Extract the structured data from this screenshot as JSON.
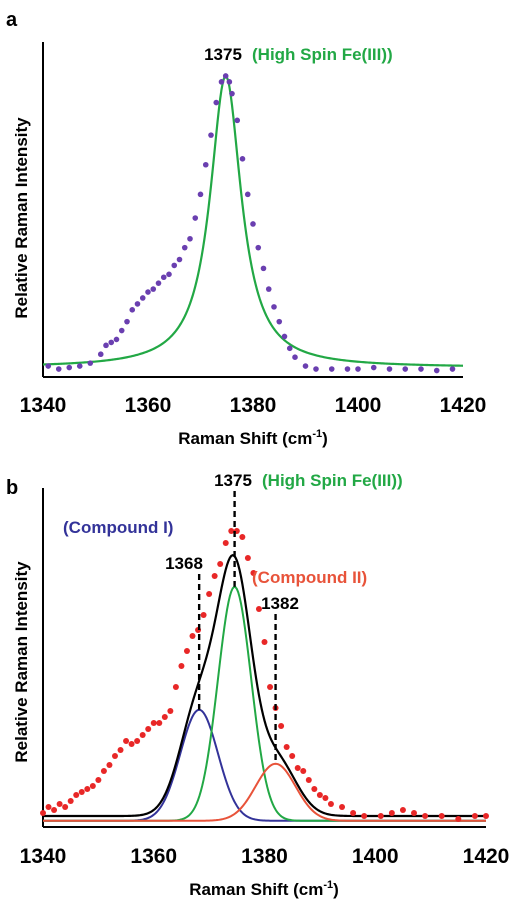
{
  "chart_data": [
    {
      "panel": "a",
      "type": "line",
      "xlabel": "Raman Shift (cm⁻¹)",
      "ylabel": "Relative Raman Intensity",
      "xlim": [
        1340,
        1420
      ],
      "ylim": [
        0,
        1.02
      ],
      "xticks": [
        "1340",
        "1360",
        "1380",
        "1400",
        "1420"
      ],
      "grid": false,
      "colors": {
        "fit": "#22a845",
        "data": "#6a3fb0"
      },
      "annotations": [
        {
          "label": "1375",
          "x": 1375,
          "color": "#000000"
        },
        {
          "label": "(High Spin Fe(III))",
          "color": "#22a845"
        }
      ],
      "fit": {
        "center": 1374.8,
        "hwhm": 3.6,
        "amplitude": 1.0,
        "baseline": 0.015
      },
      "data_points": [
        [
          1341,
          0.02
        ],
        [
          1343,
          0.01
        ],
        [
          1345,
          0.015
        ],
        [
          1347,
          0.02
        ],
        [
          1349,
          0.03
        ],
        [
          1351,
          0.06
        ],
        [
          1352,
          0.09
        ],
        [
          1353,
          0.1
        ],
        [
          1354,
          0.11
        ],
        [
          1355,
          0.14
        ],
        [
          1356,
          0.17
        ],
        [
          1357,
          0.21
        ],
        [
          1358,
          0.23
        ],
        [
          1359,
          0.25
        ],
        [
          1360,
          0.27
        ],
        [
          1361,
          0.28
        ],
        [
          1362,
          0.3
        ],
        [
          1363,
          0.32
        ],
        [
          1364,
          0.33
        ],
        [
          1365,
          0.36
        ],
        [
          1366,
          0.38
        ],
        [
          1367,
          0.42
        ],
        [
          1368,
          0.45
        ],
        [
          1369,
          0.52
        ],
        [
          1370,
          0.6
        ],
        [
          1371,
          0.7
        ],
        [
          1372,
          0.8
        ],
        [
          1373,
          0.91
        ],
        [
          1374,
          0.98
        ],
        [
          1374.8,
          1.0
        ],
        [
          1375.5,
          0.98
        ],
        [
          1376,
          0.94
        ],
        [
          1377,
          0.85
        ],
        [
          1378,
          0.72
        ],
        [
          1379,
          0.6
        ],
        [
          1380,
          0.5
        ],
        [
          1381,
          0.42
        ],
        [
          1382,
          0.35
        ],
        [
          1383,
          0.28
        ],
        [
          1384,
          0.22
        ],
        [
          1385,
          0.17
        ],
        [
          1386,
          0.12
        ],
        [
          1387,
          0.08
        ],
        [
          1388,
          0.05
        ],
        [
          1390,
          0.02
        ],
        [
          1392,
          0.01
        ],
        [
          1395,
          0.01
        ],
        [
          1398,
          0.01
        ],
        [
          1400,
          0.01
        ],
        [
          1403,
          0.015
        ],
        [
          1406,
          0.01
        ],
        [
          1409,
          0.01
        ],
        [
          1412,
          0.01
        ],
        [
          1415,
          0.005
        ],
        [
          1418,
          0.01
        ]
      ]
    },
    {
      "panel": "b",
      "type": "line",
      "xlabel": "Raman Shift (cm⁻¹)",
      "ylabel": "Relative Raman Intensity",
      "xlim": [
        1340,
        1420
      ],
      "ylim": [
        0,
        1.02
      ],
      "xticks": [
        "1340",
        "1360",
        "1380",
        "1400",
        "1420"
      ],
      "grid": false,
      "colors": {
        "sum": "#000000",
        "high_spin": "#22a845",
        "compound_i": "#333399",
        "compound_ii": "#e8533a",
        "data": "#e82727"
      },
      "annotations": [
        {
          "label": "1375",
          "x": 1375,
          "color": "#000000"
        },
        {
          "label": "(High Spin Fe(III))",
          "color": "#22a845"
        },
        {
          "label": "(Compound I)",
          "color": "#333399"
        },
        {
          "label": "1368",
          "x": 1368,
          "color": "#000000"
        },
        {
          "label": "(Compound II)",
          "color": "#e8533a"
        },
        {
          "label": "1382",
          "x": 1382,
          "color": "#000000"
        }
      ],
      "components": [
        {
          "center": 1368.2,
          "sigma": 3.4,
          "amplitude": 0.37
        },
        {
          "center": 1374.6,
          "sigma": 3.0,
          "amplitude": 0.78
        },
        {
          "center": 1382.0,
          "sigma": 3.6,
          "amplitude": 0.19
        }
      ],
      "baseline": 0.02,
      "data_points": [
        [
          1340,
          0.03
        ],
        [
          1341,
          0.05
        ],
        [
          1342,
          0.04
        ],
        [
          1343,
          0.06
        ],
        [
          1344,
          0.05
        ],
        [
          1345,
          0.07
        ],
        [
          1346,
          0.09
        ],
        [
          1347,
          0.1
        ],
        [
          1348,
          0.11
        ],
        [
          1349,
          0.12
        ],
        [
          1350,
          0.14
        ],
        [
          1351,
          0.17
        ],
        [
          1352,
          0.19
        ],
        [
          1353,
          0.22
        ],
        [
          1354,
          0.24
        ],
        [
          1355,
          0.27
        ],
        [
          1356,
          0.26
        ],
        [
          1357,
          0.27
        ],
        [
          1358,
          0.29
        ],
        [
          1359,
          0.31
        ],
        [
          1360,
          0.33
        ],
        [
          1361,
          0.33
        ],
        [
          1362,
          0.35
        ],
        [
          1363,
          0.37
        ],
        [
          1364,
          0.45
        ],
        [
          1365,
          0.52
        ],
        [
          1366,
          0.57
        ],
        [
          1367,
          0.62
        ],
        [
          1368,
          0.64
        ],
        [
          1369,
          0.69
        ],
        [
          1370,
          0.76
        ],
        [
          1371,
          0.82
        ],
        [
          1372,
          0.86
        ],
        [
          1373,
          0.93
        ],
        [
          1374,
          0.97
        ],
        [
          1375,
          0.97
        ],
        [
          1376,
          0.95
        ],
        [
          1377,
          0.88
        ],
        [
          1378,
          0.83
        ],
        [
          1379,
          0.71
        ],
        [
          1380,
          0.6
        ],
        [
          1381,
          0.45
        ],
        [
          1382,
          0.38
        ],
        [
          1383,
          0.32
        ],
        [
          1384,
          0.25
        ],
        [
          1385,
          0.22
        ],
        [
          1386,
          0.18
        ],
        [
          1387,
          0.17
        ],
        [
          1388,
          0.14
        ],
        [
          1389,
          0.11
        ],
        [
          1390,
          0.09
        ],
        [
          1391,
          0.08
        ],
        [
          1392,
          0.06
        ],
        [
          1394,
          0.05
        ],
        [
          1396,
          0.03
        ],
        [
          1398,
          0.02
        ],
        [
          1401,
          0.02
        ],
        [
          1403,
          0.03
        ],
        [
          1405,
          0.04
        ],
        [
          1407,
          0.03
        ],
        [
          1409,
          0.02
        ],
        [
          1412,
          0.02
        ],
        [
          1415,
          0.01
        ],
        [
          1418,
          0.02
        ],
        [
          1420,
          0.02
        ]
      ]
    }
  ],
  "text": {
    "a_label": "a",
    "b_label": "b",
    "a_peak": "1375",
    "a_peak_name": "(High Spin Fe(III))",
    "b_peak": "1375",
    "b_peak_name": "(High Spin Fe(III))",
    "b_comp1": "(Compound I)",
    "b_comp1_peak": "1368",
    "b_comp2": "(Compound II)",
    "b_comp2_peak": "1382",
    "xlabel_main": "Raman Shift (cm",
    "xlabel_sup": "-1",
    "xlabel_close": ")",
    "ylabel": "Relative Raman Intensity",
    "ticks": [
      "1340",
      "1360",
      "1380",
      "1400",
      "1420"
    ]
  }
}
